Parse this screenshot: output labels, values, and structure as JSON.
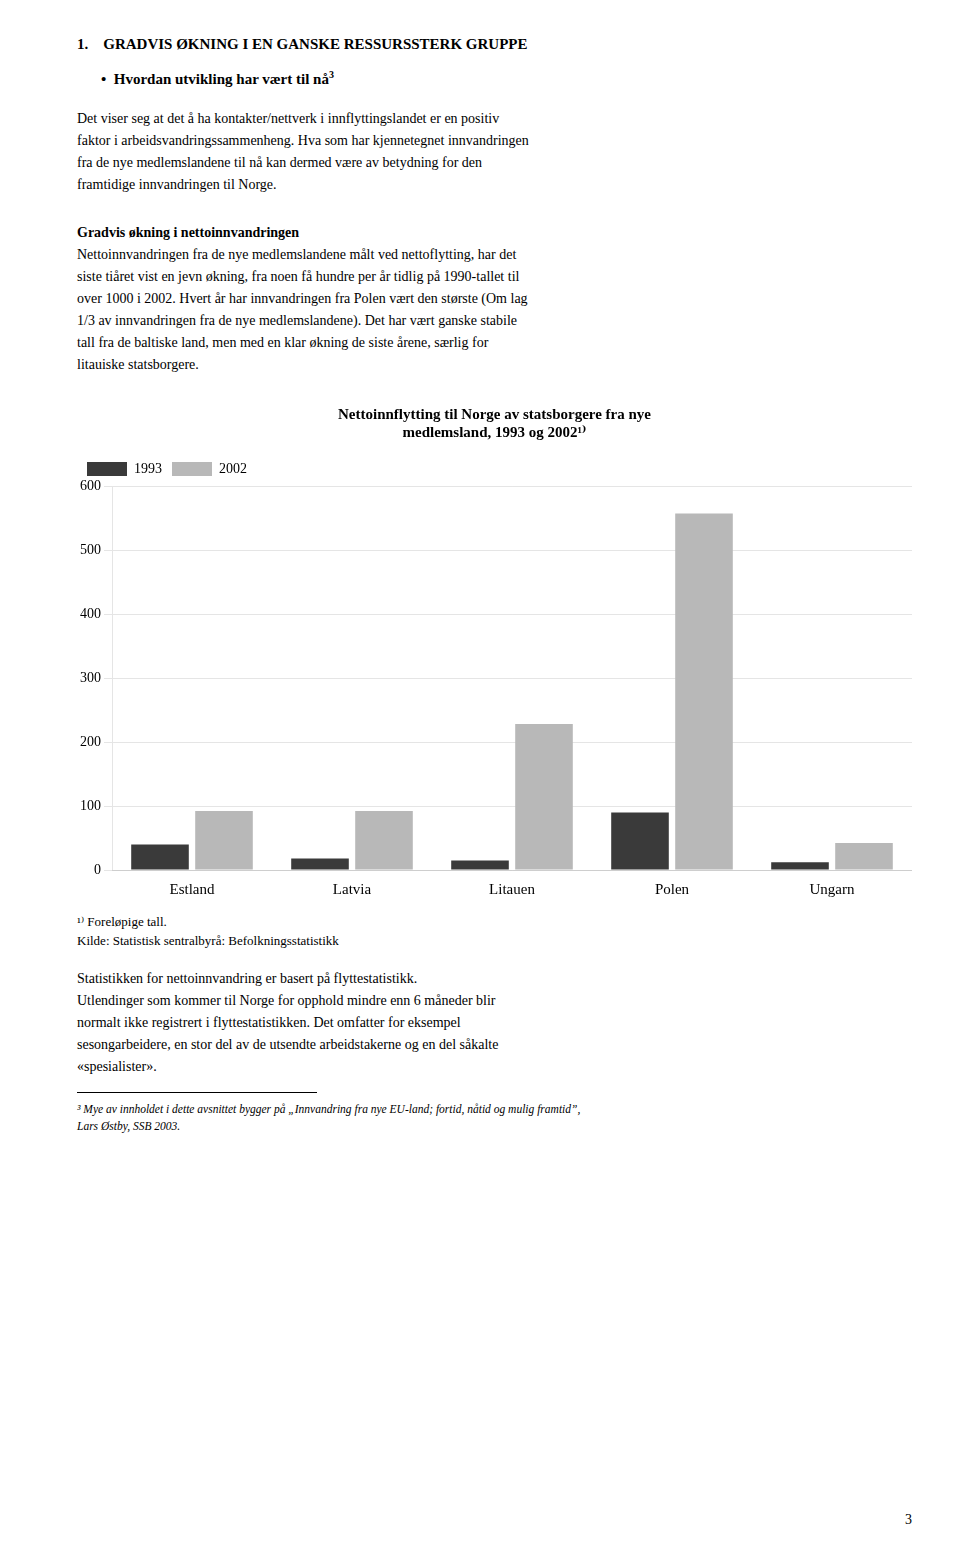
{
  "heading1": "1.    GRADVIS ØKNING I EN GANSKE RESSURSSTERK GRUPPE",
  "bullet_text": "•  Hvordan utvikling har vært til nå",
  "bullet_super": "3",
  "para1_lines": [
    "Det viser seg at det å ha kontakter/nettverk i innflyttingslandet er en positiv",
    "faktor i arbeidsvandringssammenheng. Hva som har kjennetegnet innvandringen",
    "fra de nye medlemslandene til nå kan dermed være av betydning for den",
    "framtidige innvandringen til Norge."
  ],
  "heading2": "Gradvis økning i nettoinnvandringen",
  "para2_lines": [
    "Nettoinnvandringen fra de nye medlemslandene målt ved nettoflytting, har det",
    "siste tiåret vist en jevn økning, fra noen få hundre per år tidlig på 1990-tallet til",
    "over 1000 i 2002. Hvert år har innvandringen fra Polen vært den største (Om lag",
    "1/3 av innvandringen fra de nye medlemslandene). Det har vært ganske stabile",
    "tall fra de baltiske land, men med en klar økning de siste årene, særlig for",
    "litauiske statsborgere."
  ],
  "chart_data": {
    "type": "bar",
    "title": [
      "Nettoinnflytting til Norge av statsborgere fra nye",
      "medlemsland, 1993 og 2002¹⁾"
    ],
    "categories": [
      "Estland",
      "Latvia",
      "Litauen",
      "Polen",
      "Ungarn"
    ],
    "series": [
      {
        "name": "1993",
        "color": "#3a3a3a",
        "values": [
          40,
          18,
          15,
          90,
          12
        ]
      },
      {
        "name": "2002",
        "color": "#b8b8b8",
        "values": [
          92,
          92,
          228,
          557,
          42
        ]
      }
    ],
    "ylim": [
      0,
      600
    ],
    "yticks": [
      0,
      100,
      200,
      300,
      400,
      500,
      600
    ],
    "grid": true,
    "legend": "upper left"
  },
  "footnote1": "¹⁾ Foreløpige tall.",
  "footnote2": "Kilde: Statistisk sentralbyrå: Befolkningsstatistikk",
  "bottom_para_lines": [
    "Statistikken for nettoinnvandring er basert på flyttestatistikk.",
    "Utlendinger som kommer til Norge for opphold mindre enn 6 måneder blir",
    "normalt ikke registrert i flyttestatistikken. Det omfatter for eksempel",
    "sesongarbeidere, en stor del av de utsendte arbeidstakerne og en del såkalte",
    "«spesialister»."
  ],
  "footnote_bottom_lines": [
    "³ Mye av innholdet i dette avsnittet bygger på „Innvandring fra nye EU-land; fortid, nåtid og mulig framtid”,",
    "Lars Østby, SSB 2003."
  ],
  "page_number": "3"
}
